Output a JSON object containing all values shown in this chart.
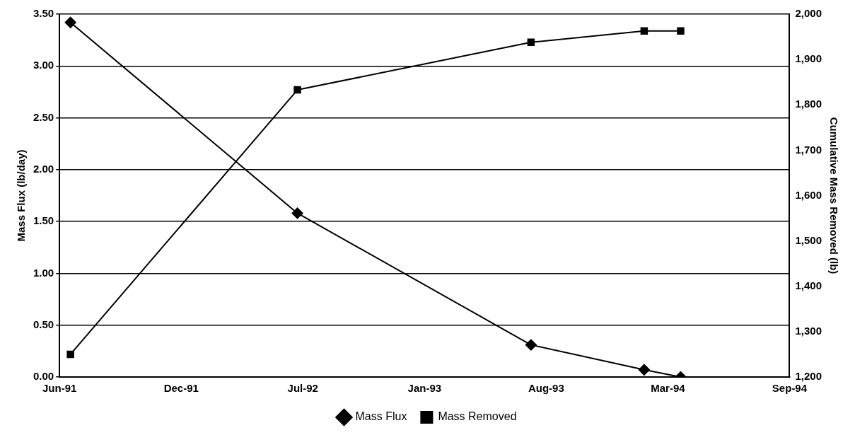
{
  "chart_data": {
    "type": "line",
    "xlabel": null,
    "ylabel": "Mass Flux (lb/day)",
    "y2label": "Cumulative Mass Removed (lb)",
    "x": [
      "1991-06-28",
      "1992-07-05",
      "1993-07-24",
      "1994-01-26",
      "1994-03-27"
    ],
    "series": [
      {
        "name": "Mass Flux",
        "color": "#000000",
        "marker": "diamond",
        "values": [
          3.42,
          1.58,
          0.31,
          0.07,
          0.0
        ]
      },
      {
        "name": "Mass Removed",
        "color": "#000000",
        "marker": "square",
        "axis": "y2",
        "values": [
          1250,
          1833,
          1938,
          1963,
          1963
        ]
      }
    ],
    "xlim": [
      "1991-06-10",
      "1994-09-22"
    ],
    "xticks": [
      {
        "value": "1991-06-10",
        "label": "Jun-91"
      },
      {
        "value": "1991-12-27",
        "label": "Dec-91"
      },
      {
        "value": "1992-07-14",
        "label": "Jul-92"
      },
      {
        "value": "1993-01-30",
        "label": "Jan-93"
      },
      {
        "value": "1993-08-18",
        "label": "Aug-93"
      },
      {
        "value": "1994-03-06",
        "label": "Mar-94"
      },
      {
        "value": "1994-09-22",
        "label": "Sep-94"
      }
    ],
    "ylim": [
      0,
      3.5
    ],
    "yticks": [
      {
        "value": 0,
        "label": "0.00"
      },
      {
        "value": 0.5,
        "label": "0.50"
      },
      {
        "value": 1,
        "label": "1.00"
      },
      {
        "value": 1.5,
        "label": "1.50"
      },
      {
        "value": 2,
        "label": "2.00"
      },
      {
        "value": 2.5,
        "label": "2.50"
      },
      {
        "value": 3,
        "label": "3.00"
      },
      {
        "value": 3.5,
        "label": "3.50"
      }
    ],
    "y2lim": [
      1200,
      2000
    ],
    "y2ticks": [
      {
        "value": 1200,
        "label": "1,200"
      },
      {
        "value": 1300,
        "label": "1,300"
      },
      {
        "value": 1400,
        "label": "1,400"
      },
      {
        "value": 1500,
        "label": "1,500"
      },
      {
        "value": 1600,
        "label": "1,600"
      },
      {
        "value": 1700,
        "label": "1,700"
      },
      {
        "value": 1800,
        "label": "1,800"
      },
      {
        "value": 1900,
        "label": "1,900"
      },
      {
        "value": 2000,
        "label": "2,000"
      }
    ],
    "grid": "y",
    "legend": "bottom"
  }
}
